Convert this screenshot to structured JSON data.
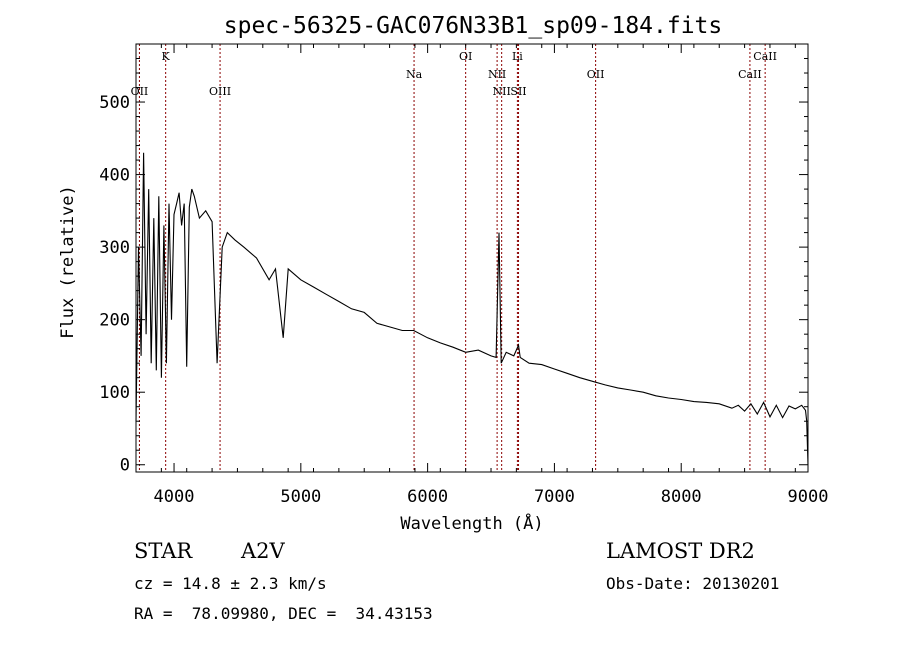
{
  "chart_data": {
    "type": "line",
    "title": "spec-56325-GAC076N33B1_sp09-184.fits",
    "xlabel": "Wavelength (Å)",
    "ylabel": "Flux (relative)",
    "xlim": [
      3700,
      9000
    ],
    "ylim": [
      -10,
      580
    ],
    "x_ticks": [
      4000,
      5000,
      6000,
      7000,
      8000,
      9000
    ],
    "y_ticks": [
      0,
      100,
      200,
      300,
      400,
      500
    ],
    "grid": false,
    "line_color": "#000000",
    "marker_color": "#8b0000",
    "series": [
      {
        "x": [
          3700,
          3720,
          3740,
          3760,
          3780,
          3800,
          3820,
          3840,
          3860,
          3880,
          3900,
          3920,
          3940,
          3960,
          3980,
          4000,
          4020,
          4040,
          4060,
          4080,
          4100,
          4120,
          4140,
          4160,
          4200,
          4250,
          4300,
          4340,
          4380,
          4420,
          4480,
          4550,
          4650,
          4750,
          4800,
          4861,
          4900,
          5000,
          5100,
          5200,
          5300,
          5400,
          5500,
          5600,
          5700,
          5800,
          5890,
          6000,
          6100,
          6200,
          6300,
          6400,
          6500,
          6540,
          6563,
          6580,
          6620,
          6680,
          6717,
          6730,
          6800,
          6900,
          7000,
          7100,
          7200,
          7300,
          7400,
          7500,
          7600,
          7700,
          7800,
          7900,
          8000,
          8100,
          8200,
          8300,
          8400,
          8450,
          8500,
          8550,
          8600,
          8650,
          8700,
          8750,
          8800,
          8850,
          8900,
          8950,
          8980,
          8990,
          9000
        ],
        "y": [
          60,
          300,
          150,
          430,
          180,
          380,
          140,
          340,
          130,
          370,
          120,
          330,
          140,
          360,
          200,
          345,
          360,
          375,
          330,
          360,
          135,
          355,
          380,
          370,
          340,
          350,
          335,
          140,
          300,
          320,
          310,
          300,
          285,
          255,
          270,
          175,
          270,
          255,
          245,
          235,
          225,
          215,
          210,
          195,
          190,
          185,
          185,
          175,
          168,
          162,
          155,
          158,
          150,
          148,
          320,
          140,
          155,
          150,
          165,
          148,
          140,
          138,
          132,
          126,
          120,
          115,
          110,
          106,
          103,
          100,
          95,
          92,
          90,
          87,
          86,
          84,
          78,
          82,
          74,
          84,
          70,
          86,
          66,
          82,
          65,
          81,
          77,
          82,
          75,
          60,
          0
        ]
      }
    ],
    "emission_lines": [
      {
        "label": "OII",
        "x": 3727,
        "row": 2
      },
      {
        "label": "K",
        "x": 3934,
        "row": 0
      },
      {
        "label": "OIII",
        "x": 4363,
        "row": 2
      },
      {
        "label": "Na",
        "x": 5893,
        "row": 1
      },
      {
        "label": "OI",
        "x": 6300,
        "row": 0
      },
      {
        "label": "NII",
        "x": 6548,
        "row": 1
      },
      {
        "label": "NII",
        "x": 6584,
        "row": 2
      },
      {
        "label": "Li",
        "x": 6708,
        "row": 0
      },
      {
        "label": "SII",
        "x": 6717,
        "row": 2
      },
      {
        "label": "OII",
        "x": 7325,
        "row": 1
      },
      {
        "label": "CaII",
        "x": 8542,
        "row": 1
      },
      {
        "label": "CaII",
        "x": 8662,
        "row": 0
      }
    ]
  },
  "info": {
    "object_class": "STAR",
    "subclass": "A2V",
    "survey": "LAMOST DR2",
    "redshift": "cz = 14.8 ± 2.3 km/s",
    "obs_date": "Obs-Date: 20130201",
    "coords": "RA =  78.09980, DEC =  34.43153"
  }
}
